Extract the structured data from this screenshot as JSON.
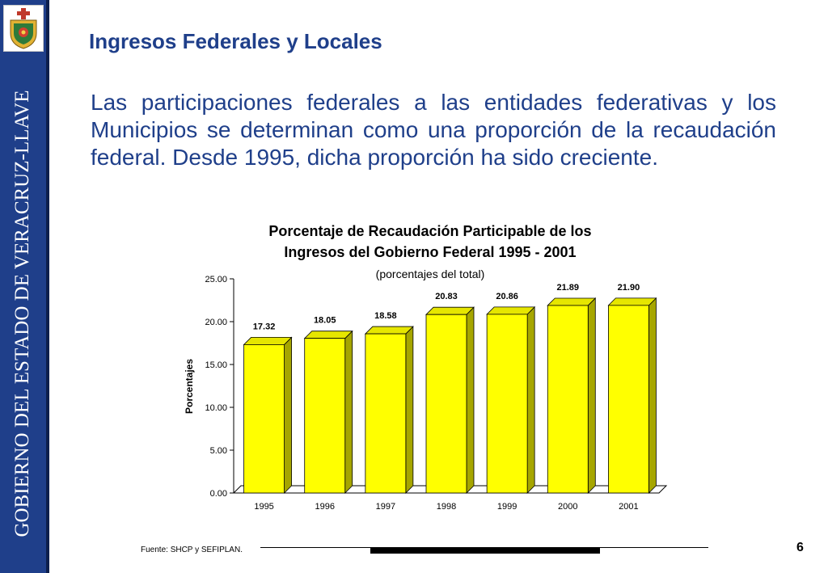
{
  "sidebar": {
    "vertical_text": "GOBIERNO DEL ESTADO DE VERACRUZ-LLAVE",
    "color": "#1f3f8a",
    "logo": "coat-of-arms-emblem"
  },
  "slide": {
    "title": "Ingresos Federales y Locales",
    "body": "Las participaciones federales a las entidades federativas y los Municipios se determinan como una proporción de la recaudación federal. Desde 1995, dicha proporción ha sido creciente.",
    "source": "Fuente: SHCP y SEFIPLAN.",
    "page_number": "6"
  },
  "chart_data": {
    "type": "bar",
    "title_line1": "Porcentaje de Recaudación Participable de los",
    "title_line2": "Ingresos del Gobierno Federal 1995 - 2001",
    "subtitle": "(porcentajes del total)",
    "ylabel": "Porcentajes",
    "xlabel": "",
    "categories": [
      "1995",
      "1996",
      "1997",
      "1998",
      "1999",
      "2000",
      "2001"
    ],
    "values": [
      17.32,
      18.05,
      18.58,
      20.83,
      20.86,
      21.89,
      21.9
    ],
    "value_labels": [
      "17.32",
      "18.05",
      "18.58",
      "20.83",
      "20.86",
      "21.89",
      "21.90"
    ],
    "y_ticks": [
      "0.00",
      "5.00",
      "10.00",
      "15.00",
      "20.00",
      "25.00"
    ],
    "ylim": [
      0,
      25
    ],
    "bar_color": "#ffff00",
    "grid": false
  }
}
